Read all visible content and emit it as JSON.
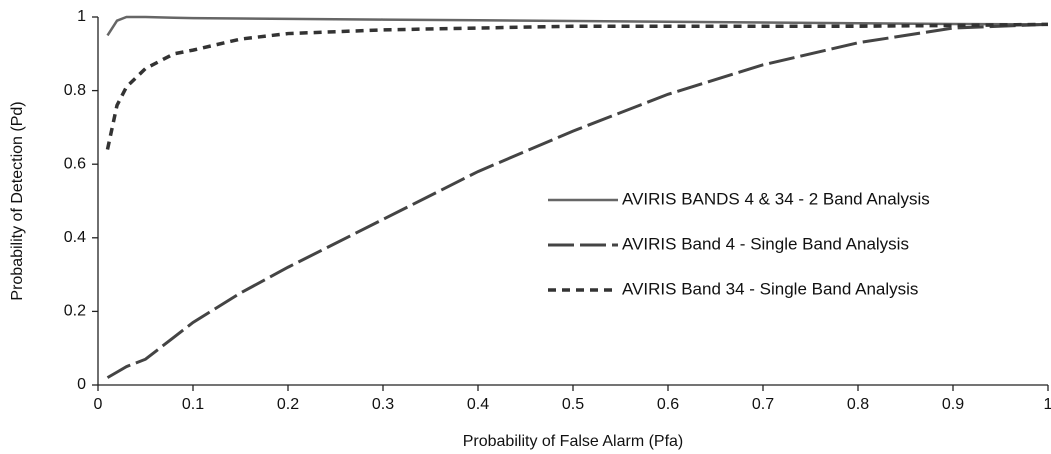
{
  "chart_data": {
    "type": "line",
    "x_label": "Probability of False Alarm (Pfa)",
    "y_label": "Probability of Detection (Pd)",
    "x": [
      0.01,
      0.02,
      0.03,
      0.05,
      0.08,
      0.1,
      0.15,
      0.2,
      0.3,
      0.4,
      0.5,
      0.6,
      0.7,
      0.8,
      0.9,
      1
    ],
    "series": [
      {
        "name": "AVIRIS BANDS 4 & 34 - 2 Band Analysis",
        "color": "#666666",
        "values": [
          0.95,
          0.99,
          1.0,
          1.0,
          0.998,
          0.997,
          0.996,
          0.995,
          0.993,
          0.991,
          0.989,
          0.987,
          0.985,
          0.983,
          0.981,
          0.98
        ]
      },
      {
        "name": "AVIRIS Band 4 - Single Band Analysis",
        "color": "#444444",
        "values": [
          0.02,
          0.035,
          0.05,
          0.07,
          0.13,
          0.17,
          0.25,
          0.32,
          0.45,
          0.58,
          0.69,
          0.79,
          0.87,
          0.93,
          0.97,
          0.98
        ]
      },
      {
        "name": "AVIRIS Band 34 - Single Band Analysis",
        "color": "#333333",
        "values": [
          0.64,
          0.76,
          0.81,
          0.86,
          0.9,
          0.91,
          0.94,
          0.955,
          0.965,
          0.97,
          0.975,
          0.975,
          0.975,
          0.975,
          0.977,
          0.98
        ]
      }
    ],
    "xlim": [
      0,
      1
    ],
    "ylim": [
      0,
      1
    ],
    "xticks": [
      0,
      0.1,
      0.2,
      0.3,
      0.4,
      0.5,
      0.6,
      0.7,
      0.8,
      0.9,
      1
    ],
    "yticks": [
      0,
      0.2,
      0.4,
      0.6,
      0.8,
      1
    ],
    "grid": false
  }
}
